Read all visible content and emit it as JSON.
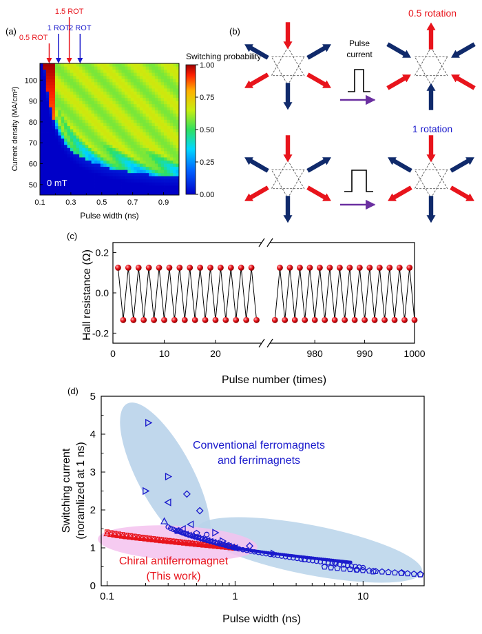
{
  "panel_labels": {
    "a": "(a)",
    "b": "(b)",
    "c": "(c)",
    "d": "(d)"
  },
  "colors": {
    "red": "#e8141c",
    "blue": "#1a1acc",
    "navy": "#102a6b",
    "purple": "#6a2fa0",
    "bubble_blue": "#b9d3ea",
    "bubble_pink": "#f4c2ef"
  },
  "panel_a": {
    "markers": [
      {
        "label": "0.5 ROT",
        "color": "#e8141c"
      },
      {
        "label": "1 ROT",
        "color": "#1a1acc"
      },
      {
        "label": "1.5 ROT",
        "color": "#e8141c"
      },
      {
        "label": "2 ROT",
        "color": "#1a1acc"
      }
    ],
    "field_label": "0 mT",
    "colorbar_title": "Switching probability",
    "colorbar_ticks": [
      "1.00",
      "0.75",
      "0.50",
      "0.25",
      "0.00"
    ]
  },
  "panel_b": {
    "pulse_label_1": "Pulse",
    "pulse_label_2": "current",
    "label_half_rotation": "0.5 rotation",
    "label_full_rotation": "1 rotation"
  },
  "chart_data": [
    {
      "type": "heatmap",
      "panel": "a",
      "xlabel": "Pulse width (ns)",
      "ylabel": "Current density (MA/cm²)",
      "xlim": [
        0.1,
        1.0
      ],
      "ylim": [
        45,
        108
      ],
      "x_ticks": [
        "0.1",
        "0.3",
        "0.5",
        "0.7",
        "0.9"
      ],
      "x_minor_ticks": [
        "0.2",
        "0.4",
        "0.6",
        "0.8"
      ],
      "y_ticks": [
        "50",
        "60",
        "70",
        "80",
        "90",
        "100"
      ],
      "color_range": [
        0,
        1
      ],
      "x_marker_values": [
        0.16,
        0.22,
        0.29,
        0.36
      ]
    },
    {
      "type": "line",
      "panel": "c",
      "xlabel": "Pulse number (times)",
      "ylabel": "Hall resistance (Ω)",
      "ylim": [
        -0.25,
        0.25
      ],
      "y_ticks": [
        "0.2",
        "0.0",
        "-0.2"
      ],
      "x_ticks_left": [
        "0",
        "10",
        "20"
      ],
      "x_ticks_right": [
        "980",
        "990",
        "1000"
      ],
      "segment_left": {
        "x_from": 1,
        "x_to": 28,
        "xlim": [
          0,
          29
        ]
      },
      "segment_right": {
        "x_from": 972,
        "x_to": 1000,
        "xlim": [
          971,
          1000
        ]
      },
      "high_value": 0.125,
      "low_value": -0.135
    },
    {
      "type": "scatter",
      "panel": "d",
      "xlabel": "Pulse width (ns)",
      "ylabel_line1": "Switching current",
      "ylabel_line2": "(noramlized at 1 ns)",
      "x_scale": "log",
      "xlim": [
        0.09,
        30
      ],
      "ylim": [
        0,
        5
      ],
      "x_ticks": [
        "0.1",
        "1",
        "10"
      ],
      "y_ticks": [
        "0",
        "1",
        "2",
        "3",
        "4",
        "5"
      ],
      "annotations": {
        "conventional_1": "Conventional ferromagnets",
        "conventional_2": "and ferrimagnets",
        "chiral_1": "Chiral antiferromagnet",
        "chiral_2": "(This work)"
      },
      "conventional_points": [
        {
          "x": 0.21,
          "y": 4.3,
          "m": "tri-right"
        },
        {
          "x": 0.2,
          "y": 2.5,
          "m": "tri-right"
        },
        {
          "x": 0.3,
          "y": 2.88,
          "m": "tri-right"
        },
        {
          "x": 0.3,
          "y": 2.2,
          "m": "tri-left"
        },
        {
          "x": 0.28,
          "y": 1.7,
          "m": "tri-up"
        },
        {
          "x": 0.42,
          "y": 2.42,
          "m": "diamond"
        },
        {
          "x": 0.53,
          "y": 1.98,
          "m": "diamond"
        },
        {
          "x": 0.45,
          "y": 1.62,
          "m": "tri-left"
        },
        {
          "x": 0.39,
          "y": 1.5,
          "m": "tri-left"
        },
        {
          "x": 0.36,
          "y": 1.45,
          "m": "tri-up"
        },
        {
          "x": 0.5,
          "y": 1.38,
          "m": "pentagon"
        },
        {
          "x": 0.6,
          "y": 1.35,
          "m": "circle"
        },
        {
          "x": 0.7,
          "y": 1.4,
          "m": "tri-right"
        },
        {
          "x": 0.8,
          "y": 1.18,
          "m": "tri-right"
        },
        {
          "x": 0.9,
          "y": 1.05,
          "m": "pentagon"
        },
        {
          "x": 1.0,
          "y": 1.0,
          "m": "circle"
        },
        {
          "x": 1.3,
          "y": 1.05,
          "m": "diamond"
        },
        {
          "x": 2.0,
          "y": 0.85,
          "m": "tri-right"
        },
        {
          "x": 3.5,
          "y": 0.7,
          "m": "pentagon"
        },
        {
          "x": 6.0,
          "y": 0.6,
          "m": "circle"
        },
        {
          "x": 9.0,
          "y": 0.42,
          "m": "circle"
        },
        {
          "x": 12.0,
          "y": 0.38,
          "m": "pentagon"
        },
        {
          "x": 20.0,
          "y": 0.34,
          "m": "pentagon"
        },
        {
          "x": 28.0,
          "y": 0.3,
          "m": "pentagon"
        }
      ],
      "conventional_dense": [
        {
          "x_from": 0.3,
          "y_from": 1.55,
          "x_to": 1.0,
          "y_to": 1.0,
          "m": "circle",
          "n": 28
        },
        {
          "x_from": 0.35,
          "y_from": 1.45,
          "x_to": 1.0,
          "y_to": 1.0,
          "m": "tri-left",
          "n": 20
        },
        {
          "x_from": 1.0,
          "y_from": 1.0,
          "x_to": 8.0,
          "y_to": 0.62,
          "m": "dot",
          "n": 60
        },
        {
          "x_from": 1.0,
          "y_from": 1.0,
          "x_to": 10.0,
          "y_to": 0.48,
          "m": "circle",
          "n": 34
        },
        {
          "x_from": 5.0,
          "y_from": 0.5,
          "x_to": 28.0,
          "y_to": 0.3,
          "m": "pentagon",
          "n": 16
        }
      ],
      "chiral_dense": [
        {
          "x_from": 0.1,
          "y_from": 1.42,
          "x_to": 1.0,
          "y_to": 1.0,
          "m": "square",
          "n": 34
        },
        {
          "x_from": 0.1,
          "y_from": 1.38,
          "x_to": 1.0,
          "y_to": 1.0,
          "m": "tri-up",
          "n": 34
        },
        {
          "x_from": 0.11,
          "y_from": 1.32,
          "x_to": 1.0,
          "y_to": 1.0,
          "m": "dot",
          "n": 50
        }
      ]
    }
  ]
}
